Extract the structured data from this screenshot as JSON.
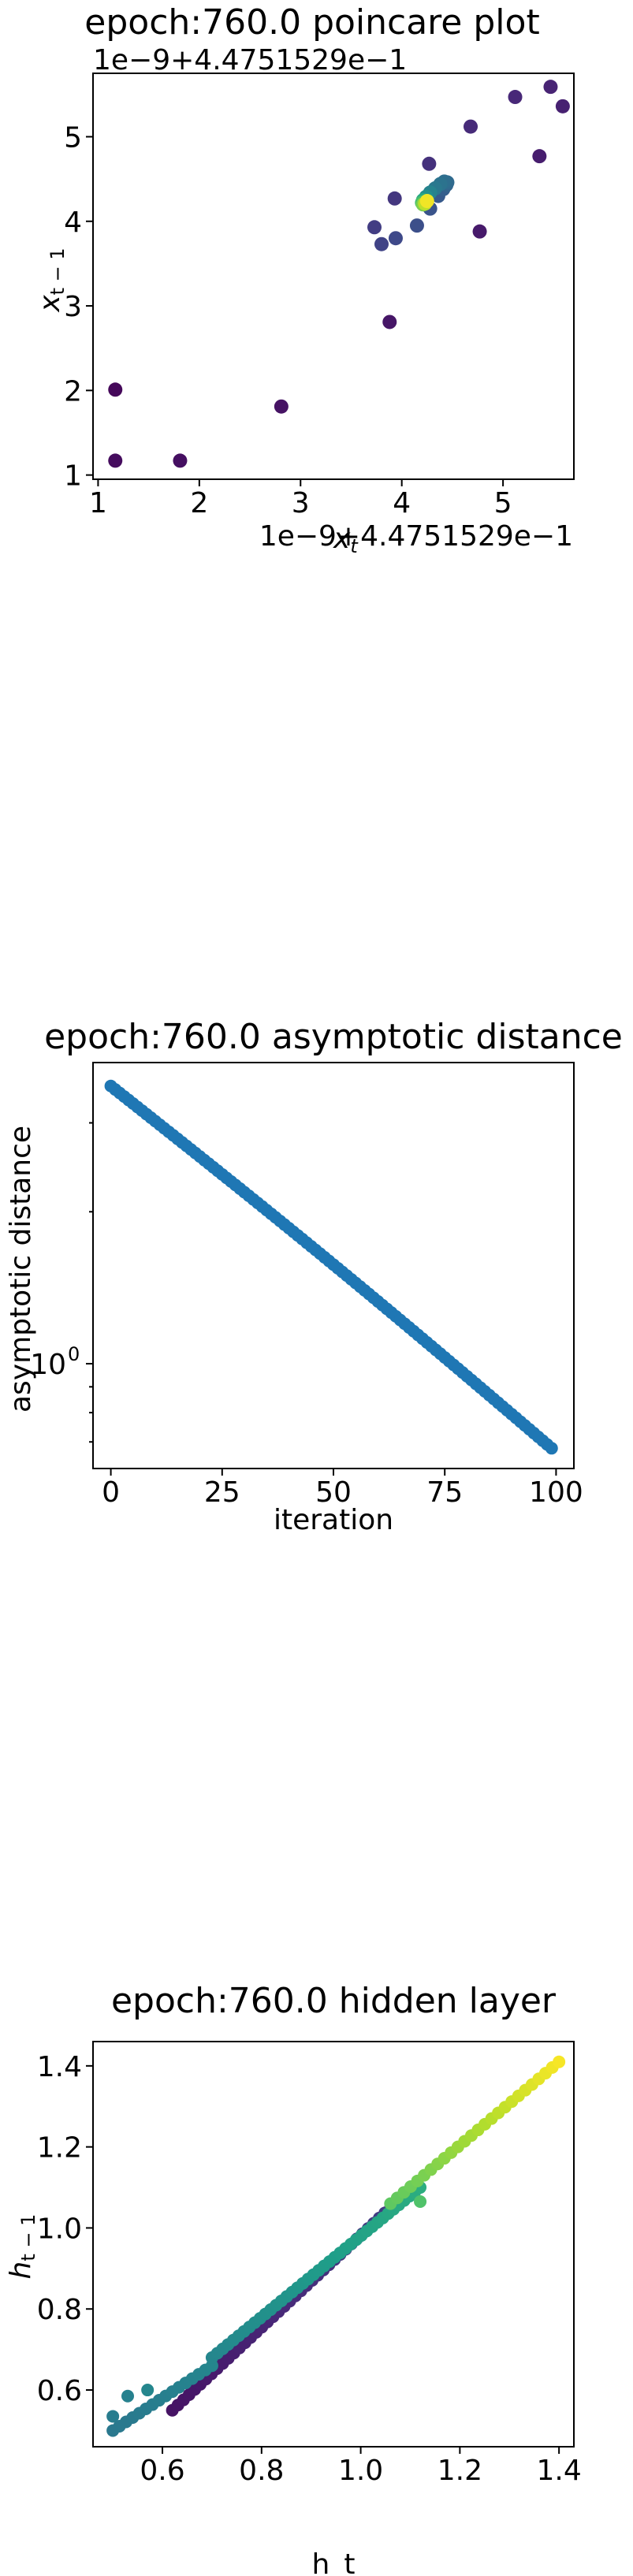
{
  "charts": {
    "poincare": {
      "title": "epoch:760.0 poincare plot",
      "xlabel": "x_t",
      "ylabel": "x_{t-1}",
      "x_offset_label": "1e−9+4.4751529e−1",
      "y_offset_label": "1e−9+4.4751529e−1",
      "xticks": [
        "1",
        "2",
        "3",
        "4",
        "5"
      ],
      "yticks": [
        "1",
        "2",
        "3",
        "4",
        "5"
      ]
    },
    "asymptotic": {
      "title": "epoch:760.0 asymptotic distance",
      "xlabel": "iteration",
      "ylabel": "asymptotic distance",
      "xticks": [
        "0",
        "25",
        "50",
        "75",
        "100"
      ],
      "ytick_base": "10",
      "ytick_exp": "0"
    },
    "hidden": {
      "title": "epoch:760.0 hidden layer",
      "xlabel": "h_t",
      "ylabel": "h_{t-1}",
      "xticks": [
        "0.6",
        "0.8",
        "1.0",
        "1.2",
        "1.4"
      ],
      "yticks": [
        "0.6",
        "0.8",
        "1.0",
        "1.2",
        "1.4"
      ]
    }
  },
  "chart_data": [
    {
      "type": "scatter",
      "title": "epoch:760.0 poincare plot",
      "xlabel": "x_t",
      "ylabel": "x_{t-1}",
      "offset": "1e-9 + 4.4751529e-1",
      "xlim": [
        0.95,
        5.7
      ],
      "ylim": [
        0.95,
        5.75
      ],
      "colormap": "viridis",
      "points": [
        {
          "x": 1.17,
          "y": 2.01,
          "c": 0.02
        },
        {
          "x": 1.17,
          "y": 1.17,
          "c": 0.03
        },
        {
          "x": 1.81,
          "y": 1.17,
          "c": 0.04
        },
        {
          "x": 2.81,
          "y": 1.81,
          "c": 0.05
        },
        {
          "x": 3.88,
          "y": 2.81,
          "c": 0.06
        },
        {
          "x": 4.77,
          "y": 3.88,
          "c": 0.07
        },
        {
          "x": 5.36,
          "y": 4.77,
          "c": 0.08
        },
        {
          "x": 5.59,
          "y": 5.36,
          "c": 0.09
        },
        {
          "x": 5.47,
          "y": 5.59,
          "c": 0.1
        },
        {
          "x": 5.12,
          "y": 5.47,
          "c": 0.11
        },
        {
          "x": 4.68,
          "y": 5.12,
          "c": 0.12
        },
        {
          "x": 4.27,
          "y": 4.68,
          "c": 0.14
        },
        {
          "x": 3.93,
          "y": 4.27,
          "c": 0.16
        },
        {
          "x": 3.73,
          "y": 3.93,
          "c": 0.18
        },
        {
          "x": 3.8,
          "y": 3.73,
          "c": 0.2
        },
        {
          "x": 3.94,
          "y": 3.8,
          "c": 0.22
        },
        {
          "x": 4.15,
          "y": 3.95,
          "c": 0.24
        },
        {
          "x": 4.28,
          "y": 4.15,
          "c": 0.26
        },
        {
          "x": 4.36,
          "y": 4.3,
          "c": 0.28
        },
        {
          "x": 4.41,
          "y": 4.38,
          "c": 0.3
        },
        {
          "x": 4.44,
          "y": 4.43,
          "c": 0.32
        },
        {
          "x": 4.45,
          "y": 4.46,
          "c": 0.34
        },
        {
          "x": 4.42,
          "y": 4.47,
          "c": 0.36
        },
        {
          "x": 4.38,
          "y": 4.44,
          "c": 0.38
        },
        {
          "x": 4.33,
          "y": 4.39,
          "c": 0.4
        },
        {
          "x": 4.28,
          "y": 4.34,
          "c": 0.45
        },
        {
          "x": 4.24,
          "y": 4.29,
          "c": 0.5
        },
        {
          "x": 4.21,
          "y": 4.25,
          "c": 0.6
        },
        {
          "x": 4.2,
          "y": 4.22,
          "c": 0.7
        },
        {
          "x": 4.21,
          "y": 4.2,
          "c": 0.8
        },
        {
          "x": 4.23,
          "y": 4.21,
          "c": 0.9
        },
        {
          "x": 4.25,
          "y": 4.24,
          "c": 0.98
        }
      ]
    },
    {
      "type": "scatter",
      "title": "epoch:760.0 asymptotic distance",
      "xlabel": "iteration",
      "ylabel": "asymptotic distance",
      "yscale": "log",
      "xlim": [
        -4,
        104
      ],
      "ylim": [
        0.62,
        3.95
      ],
      "x_start": 0,
      "x_end": 99,
      "y_start": 3.55,
      "y_end": 0.68,
      "color": "#1f77b4"
    },
    {
      "type": "scatter",
      "title": "epoch:760.0 hidden layer",
      "xlabel": "h_t",
      "ylabel": "h_{t-1}",
      "xlim": [
        0.46,
        1.43
      ],
      "ylim": [
        0.46,
        1.46
      ],
      "colormap": "viridis",
      "series": [
        {
          "name": "",
          "x_from": 0.62,
          "x_to": 1.06,
          "y_from": 0.55,
          "y_to": 1.05,
          "n": 40,
          "c_from": 0.05,
          "c_to": 0.18
        },
        {
          "name": "",
          "x_from": 0.5,
          "x_to": 0.7,
          "y_from": 0.5,
          "y_to": 0.66,
          "n": 16,
          "c_from": 0.4,
          "c_to": 0.46
        },
        {
          "name": "",
          "x_from": 0.7,
          "x_to": 1.12,
          "y_from": 0.68,
          "y_to": 1.1,
          "n": 40,
          "c_from": 0.46,
          "c_to": 0.62
        },
        {
          "name": "",
          "x_from": 1.06,
          "x_to": 1.4,
          "y_from": 1.06,
          "y_to": 1.41,
          "n": 26,
          "c_from": 0.75,
          "c_to": 0.99
        }
      ],
      "extra_points": [
        {
          "x": 0.5,
          "y": 0.535,
          "c": 0.42
        },
        {
          "x": 0.53,
          "y": 0.585,
          "c": 0.44
        },
        {
          "x": 0.57,
          "y": 0.6,
          "c": 0.46
        },
        {
          "x": 1.12,
          "y": 1.065,
          "c": 0.72
        }
      ]
    }
  ]
}
